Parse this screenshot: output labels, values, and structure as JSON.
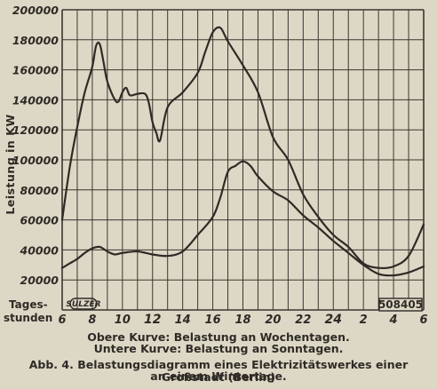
{
  "chart_data": {
    "type": "line",
    "ylabel": "Leistung in KW",
    "xlabel_lines": [
      "Tages-",
      "stunden"
    ],
    "ylim": [
      0,
      200000
    ],
    "yticks": [
      "20000",
      "40000",
      "60000",
      "80000",
      "100000",
      "120000",
      "140000",
      "160000",
      "180000",
      "200000"
    ],
    "xticks": [
      {
        "label": "6",
        "hour": 6,
        "emphasis": false
      },
      {
        "label": "8",
        "hour": 8,
        "emphasis": false
      },
      {
        "label": "10",
        "hour": 10,
        "emphasis": false
      },
      {
        "label": "12",
        "hour": 12,
        "emphasis": true
      },
      {
        "label": "14",
        "hour": 14,
        "emphasis": false
      },
      {
        "label": "16",
        "hour": 16,
        "emphasis": false
      },
      {
        "label": "18",
        "hour": 18,
        "emphasis": false
      },
      {
        "label": "20",
        "hour": 20,
        "emphasis": false
      },
      {
        "label": "22",
        "hour": 22,
        "emphasis": false
      },
      {
        "label": "24",
        "hour": 24,
        "emphasis": true
      },
      {
        "label": "2",
        "hour": 26,
        "emphasis": false
      },
      {
        "label": "4",
        "hour": 28,
        "emphasis": false
      },
      {
        "label": "6",
        "hour": 30,
        "emphasis": false
      }
    ],
    "grid": true,
    "series": [
      {
        "key": "weekday",
        "x": [
          6,
          6.5,
          7,
          7.5,
          8,
          8.25,
          8.5,
          8.75,
          9,
          9.5,
          9.75,
          10,
          10.25,
          10.5,
          11,
          11.5,
          11.75,
          12,
          12.25,
          12.5,
          13,
          14,
          15,
          15.5,
          16,
          16.5,
          17,
          18,
          19,
          20,
          21,
          22,
          23,
          24,
          25,
          26,
          27,
          28,
          29,
          30
        ],
        "y": [
          60000,
          95000,
          122000,
          145000,
          162000,
          176000,
          177000,
          165000,
          152000,
          140000,
          139000,
          145000,
          148000,
          143000,
          144000,
          144000,
          138000,
          125000,
          118000,
          113000,
          135000,
          145000,
          158000,
          172000,
          185000,
          188000,
          179000,
          163000,
          145000,
          115000,
          100000,
          77000,
          62000,
          50000,
          42000,
          31000,
          28000,
          29000,
          36000,
          57000
        ]
      },
      {
        "key": "sunday",
        "x": [
          6,
          6.5,
          7,
          7.5,
          8,
          8.5,
          9,
          9.5,
          10,
          11,
          12,
          13,
          14,
          15,
          16,
          16.5,
          17,
          17.5,
          18,
          18.5,
          19,
          20,
          21,
          22,
          23,
          24,
          25,
          26,
          27,
          28,
          29,
          30
        ],
        "y": [
          28000,
          31000,
          34000,
          38000,
          41000,
          42000,
          39000,
          37000,
          38000,
          39000,
          37000,
          36000,
          39000,
          50000,
          62000,
          75000,
          92000,
          96000,
          99000,
          96000,
          89000,
          79000,
          73000,
          63000,
          55000,
          46000,
          38000,
          30000,
          24000,
          23000,
          25000,
          29000
        ]
      }
    ]
  },
  "stamp": {
    "label": "SULZER"
  },
  "code_box": {
    "label": "508405"
  },
  "captions": {
    "upper": "Obere Kurve: Belastung an Wochentagen.",
    "lower": "Untere Kurve: Belastung an Sonntagen.",
    "figure_line1": "Abb. 4. Belastungsdiagramm eines Elektrizitätswerkes einer Großstadt (Berlin)",
    "figure_line2": "an einem Wintertage."
  },
  "colors": {
    "background": "#ddd8c6",
    "ink": "#2e2b26",
    "grid": "#3a362f"
  }
}
